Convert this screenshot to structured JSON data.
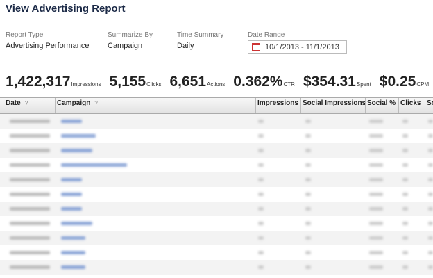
{
  "header": {
    "title": "View Advertising Report"
  },
  "filters": [
    {
      "label": "Report Type",
      "value": "Advertising Performance"
    },
    {
      "label": "Summarize By",
      "value": "Campaign"
    },
    {
      "label": "Time Summary",
      "value": "Daily"
    },
    {
      "label": "Date Range",
      "value": "10/1/2013 - 11/1/2013"
    }
  ],
  "summary": [
    {
      "value": "1,422,317",
      "label": "Impressions"
    },
    {
      "value": "5,155",
      "label": "Clicks"
    },
    {
      "value": "6,651",
      "label": "Actions"
    },
    {
      "value": "0.362%",
      "label": "CTR"
    },
    {
      "value": "$354.31",
      "label": "Spent"
    },
    {
      "value": "$0.25",
      "label": "CPM"
    }
  ],
  "table": {
    "columns": [
      {
        "label": "Date",
        "help": "?"
      },
      {
        "label": "Campaign",
        "help": "?"
      },
      {
        "label": "Impressions"
      },
      {
        "label": "Social Impressions"
      },
      {
        "label": "Social %"
      },
      {
        "label": "Clicks"
      },
      {
        "label": "Social"
      }
    ]
  }
}
